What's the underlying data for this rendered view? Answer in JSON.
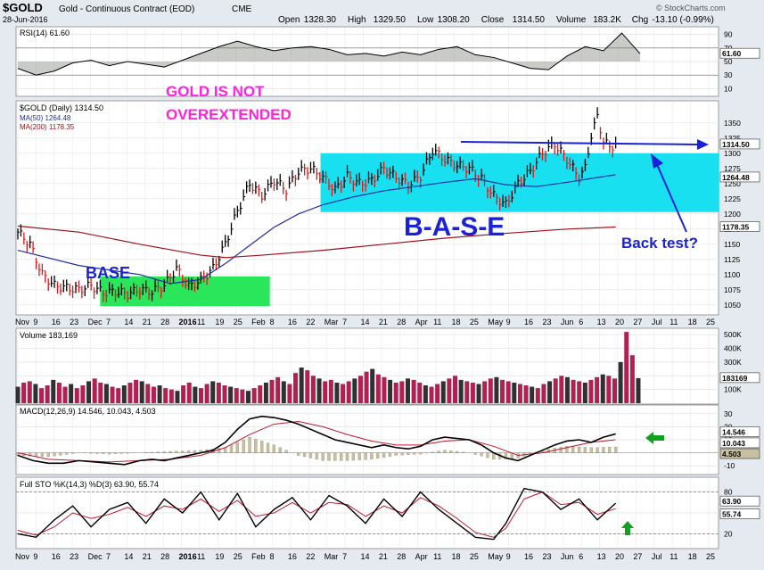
{
  "header": {
    "symbol": "$GOLD",
    "name": "Gold - Continuous Contract (EOD)",
    "exchange": "CME",
    "date": "28-Jun-2016",
    "copyright": "© StockCharts.com",
    "ohlc": [
      {
        "label": "Open",
        "value": "1328.30"
      },
      {
        "label": "High",
        "value": "1329.50"
      },
      {
        "label": "Low",
        "value": "1308.20"
      },
      {
        "label": "Close",
        "value": "1314.50"
      },
      {
        "label": "Volume",
        "value": "183.2K"
      },
      {
        "label": "Chg",
        "value": "-13.10 (-0.99%)"
      }
    ]
  },
  "colors": {
    "frame": "#dfe6ec",
    "base_zone": "#29e65b",
    "base_range_zone": "#18e0f0",
    "up_bar": "#000000",
    "down_bar": "#e01818",
    "ma50": "#2030a0",
    "ma200": "#a0101a",
    "annotation_magenta": "#ff22dd",
    "annotation_blue": "#1a22d6",
    "volume_down": "#b02050",
    "volume_up": "#303030",
    "macd_hist": "#c8c0a0",
    "arrow_green": "#12a020",
    "rsi_fill": "#9aa098"
  },
  "chart_data": [
    {
      "panel": "rsi",
      "type": "line",
      "title": "RSI(14) 61.60",
      "ylim": [
        0,
        100
      ],
      "yticks": [
        10,
        30,
        50,
        70,
        90
      ],
      "last_label": "61.60",
      "series": [
        {
          "x": [
            0,
            1,
            2,
            3,
            4,
            5,
            6,
            7,
            8,
            9,
            10,
            11,
            12,
            13,
            14,
            15,
            16,
            17,
            18,
            19,
            20,
            21,
            22,
            23,
            24,
            25,
            26,
            27,
            28,
            29,
            30,
            31,
            32,
            33,
            34
          ],
          "values": [
            40,
            30,
            36,
            48,
            52,
            44,
            50,
            46,
            42,
            52,
            62,
            72,
            80,
            72,
            66,
            70,
            72,
            68,
            60,
            62,
            58,
            64,
            60,
            68,
            72,
            60,
            56,
            48,
            40,
            38,
            58,
            72,
            66,
            92,
            61.6
          ]
        }
      ]
    },
    {
      "panel": "price",
      "type": "line",
      "title": "$GOLD (Daily) 1314.50",
      "legend": [
        {
          "name": "MA(50) 1264.48",
          "color": "#2030a0"
        },
        {
          "name": "MA(200) 1178.35",
          "color": "#a0101a"
        }
      ],
      "ylim": [
        1035,
        1385
      ],
      "yticks": [
        1050,
        1075,
        1100,
        1125,
        1150,
        1175,
        1200,
        1225,
        1250,
        1275,
        1300,
        1325,
        1350
      ],
      "last_labels": [
        "1314.50",
        "1264.48",
        "1178.35"
      ],
      "series": [
        {
          "name": "$GOLD",
          "x": [
            0,
            4,
            8,
            12,
            16,
            20,
            24,
            28,
            32,
            36,
            40,
            44,
            48,
            52,
            56,
            60,
            64,
            68,
            72,
            76,
            80,
            84,
            88,
            92,
            96,
            100,
            104,
            108,
            112,
            116,
            120,
            124,
            128,
            132,
            136,
            140,
            144,
            148,
            152,
            156,
            160,
            164,
            168,
            172,
            176,
            180,
            184,
            186,
            188,
            190,
            192,
            194,
            196,
            200,
            204
          ],
          "values": [
            1170,
            1150,
            1100,
            1082,
            1078,
            1075,
            1082,
            1070,
            1072,
            1068,
            1075,
            1072,
            1082,
            1110,
            1080,
            1090,
            1110,
            1150,
            1205,
            1250,
            1230,
            1255,
            1240,
            1270,
            1275,
            1260,
            1240,
            1262,
            1250,
            1255,
            1275,
            1260,
            1248,
            1262,
            1305,
            1290,
            1280,
            1275,
            1258,
            1230,
            1215,
            1250,
            1270,
            1300,
            1315,
            1290,
            1260,
            1275,
            1330,
            1360,
            1320,
            1310,
            1314.5,
            1314.5,
            1314.5
          ]
        },
        {
          "name": "MA(50)",
          "x": [
            0,
            20,
            40,
            50,
            60,
            68,
            76,
            84,
            92,
            100,
            110,
            120,
            130,
            140,
            150,
            160,
            170,
            180,
            190,
            196
          ],
          "values": [
            1140,
            1115,
            1100,
            1085,
            1092,
            1118,
            1148,
            1178,
            1200,
            1215,
            1228,
            1238,
            1245,
            1252,
            1258,
            1248,
            1245,
            1252,
            1260,
            1264.48
          ]
        },
        {
          "name": "MA(200)",
          "x": [
            0,
            20,
            40,
            60,
            68,
            80,
            100,
            120,
            140,
            160,
            180,
            196
          ],
          "values": [
            1180,
            1170,
            1150,
            1132,
            1128,
            1132,
            1140,
            1150,
            1160,
            1168,
            1175,
            1178.35
          ]
        }
      ]
    },
    {
      "panel": "volume",
      "type": "bar",
      "title": "Volume 183,169",
      "yticks": [
        "100K",
        "200K",
        "300K",
        "400K",
        "500K"
      ],
      "ylim": [
        0,
        540
      ],
      "last_label": "183169",
      "values": [
        120,
        150,
        160,
        140,
        110,
        130,
        170,
        150,
        120,
        140,
        110,
        130,
        160,
        180,
        150,
        140,
        120,
        110,
        130,
        150,
        170,
        160,
        140,
        120,
        130,
        110,
        100,
        90,
        130,
        150,
        120,
        110,
        140,
        160,
        150,
        130,
        120,
        110,
        100,
        90,
        110,
        130,
        150,
        170,
        190,
        160,
        140,
        220,
        260,
        240,
        200,
        180,
        160,
        170,
        150,
        140,
        160,
        180,
        200,
        230,
        250,
        210,
        190,
        170,
        150,
        160,
        180,
        170,
        150,
        130,
        120,
        140,
        160,
        180,
        200,
        170,
        160,
        150,
        140,
        160,
        180,
        190,
        170,
        160,
        150,
        140,
        130,
        120,
        110,
        140,
        160,
        180,
        200,
        190,
        170,
        160,
        150,
        170,
        190,
        210,
        200,
        180,
        300,
        520,
        350,
        183
      ]
    },
    {
      "panel": "macd",
      "type": "line",
      "title": "MACD(12,26,9) 14.546, 10.043, 4.503",
      "ylim": [
        -16,
        36
      ],
      "yticks": [
        -10,
        0,
        10,
        20,
        30
      ],
      "last_labels": [
        "14.546",
        "10.043",
        "4.503"
      ],
      "series": [
        {
          "name": "MACD",
          "x": [
            0,
            5,
            10,
            15,
            20,
            25,
            30,
            35,
            40,
            44,
            48,
            52,
            56,
            60,
            64,
            68,
            72,
            76,
            80,
            84,
            88,
            92,
            96,
            100,
            104,
            108,
            112,
            116,
            120,
            124,
            128,
            132,
            136,
            140,
            144,
            148,
            152,
            156,
            160,
            164,
            168,
            172,
            176,
            180,
            184,
            188,
            192,
            196
          ],
          "values": [
            -2,
            -6,
            -8,
            -8,
            -6,
            -7,
            -8,
            -9,
            -6,
            -5,
            -6,
            -4,
            -2,
            0,
            2,
            8,
            18,
            26,
            28,
            27,
            25,
            22,
            18,
            14,
            10,
            8,
            6,
            4,
            6,
            4,
            3,
            5,
            10,
            12,
            11,
            10,
            6,
            0,
            -4,
            -6,
            -2,
            2,
            6,
            9,
            10,
            8,
            12,
            14.5
          ]
        },
        {
          "name": "Signal",
          "x": [
            0,
            10,
            20,
            30,
            40,
            50,
            60,
            68,
            76,
            84,
            92,
            100,
            108,
            116,
            124,
            132,
            140,
            148,
            156,
            164,
            172,
            180,
            188,
            196
          ],
          "values": [
            0,
            -5,
            -6,
            -7,
            -6,
            -5,
            -2,
            4,
            14,
            22,
            24,
            20,
            14,
            9,
            6,
            6,
            9,
            10,
            5,
            -2,
            0,
            4,
            8,
            10.0
          ]
        },
        {
          "name": "Histogram",
          "x": [
            0,
            10,
            20,
            30,
            40,
            50,
            60,
            68,
            76,
            84,
            92,
            100,
            108,
            116,
            124,
            132,
            140,
            148,
            156,
            164,
            172,
            180,
            188,
            196
          ],
          "values": [
            -2,
            -3,
            0,
            -1,
            0,
            1,
            2,
            4,
            12,
            6,
            -2,
            -6,
            -6,
            -5,
            -2,
            -1,
            2,
            0,
            -5,
            -4,
            2,
            5,
            4,
            4.5
          ]
        }
      ]
    },
    {
      "panel": "stoch",
      "type": "line",
      "title": "Full STO %K(14,3) %D(3) 63.90, 55.74",
      "ylim": [
        0,
        100
      ],
      "yticks": [
        20,
        50,
        80
      ],
      "last_labels": [
        "63.90",
        "55.74"
      ],
      "series": [
        {
          "name": "%K",
          "x": [
            0,
            6,
            12,
            18,
            24,
            30,
            36,
            42,
            48,
            54,
            60,
            66,
            72,
            78,
            84,
            90,
            96,
            102,
            108,
            114,
            120,
            126,
            132,
            138,
            144,
            150,
            156,
            160,
            166,
            172,
            178,
            184,
            190,
            196
          ],
          "values": [
            20,
            15,
            40,
            60,
            30,
            55,
            65,
            35,
            70,
            50,
            80,
            40,
            78,
            30,
            55,
            72,
            40,
            75,
            60,
            35,
            70,
            45,
            80,
            55,
            35,
            15,
            12,
            35,
            85,
            80,
            55,
            70,
            40,
            64
          ]
        },
        {
          "name": "%D",
          "x": [
            0,
            6,
            12,
            18,
            24,
            30,
            36,
            42,
            48,
            54,
            60,
            66,
            72,
            78,
            84,
            90,
            96,
            102,
            108,
            114,
            120,
            126,
            132,
            138,
            144,
            150,
            156,
            160,
            166,
            172,
            178,
            184,
            190,
            196
          ],
          "values": [
            25,
            18,
            30,
            50,
            42,
            48,
            58,
            45,
            60,
            55,
            70,
            52,
            68,
            45,
            50,
            65,
            50,
            65,
            62,
            45,
            60,
            50,
            72,
            60,
            42,
            22,
            15,
            28,
            70,
            80,
            62,
            65,
            48,
            56
          ]
        }
      ]
    }
  ],
  "x_axis": {
    "labels": [
      "Nov",
      "9",
      "16",
      "23",
      "Dec",
      "7",
      "14",
      "21",
      "28",
      "2016",
      "11",
      "19",
      "25",
      "Feb",
      "8",
      "16",
      "22",
      "Mar",
      "7",
      "14",
      "21",
      "28",
      "Apr",
      "11",
      "18",
      "25",
      "May",
      "9",
      "16",
      "23",
      "Jun",
      "6",
      "13",
      "20",
      "27",
      "Jul",
      "11",
      "18",
      "25"
    ]
  },
  "annotations": {
    "not_overextended_1": "GOLD IS NOT",
    "not_overextended_2": "OVEREXTENDED",
    "base": "BASE",
    "big_base": "B-A-S-E",
    "back_test": "Back test?"
  }
}
